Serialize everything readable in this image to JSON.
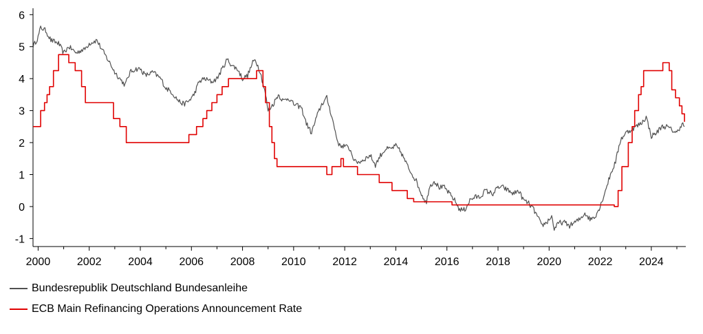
{
  "chart_data": {
    "type": "line",
    "title": "",
    "xlabel": "",
    "ylabel": "",
    "xlim": [
      1999.8,
      2025.35
    ],
    "ylim": [
      -1.25,
      6.2
    ],
    "y_ticks": [
      -1,
      0,
      1,
      2,
      3,
      4,
      5,
      6
    ],
    "x_ticks": [
      2000,
      2002,
      2004,
      2006,
      2008,
      2010,
      2012,
      2014,
      2016,
      2018,
      2020,
      2022,
      2024
    ],
    "grid": false,
    "legend_position": "bottom-left",
    "series": [
      {
        "name": "Bundesrepublik Deutschland Bundesanleihe",
        "color": "#505050",
        "style": "noisy-line",
        "x": [
          1999.8,
          2000.0,
          2000.1,
          2000.3,
          2000.5,
          2000.8,
          2001.0,
          2001.2,
          2001.5,
          2001.7,
          2001.8,
          2002.0,
          2002.3,
          2002.5,
          2002.8,
          2003.0,
          2003.2,
          2003.4,
          2003.6,
          2003.8,
          2004.0,
          2004.2,
          2004.5,
          2004.8,
          2005.0,
          2005.2,
          2005.5,
          2005.7,
          2005.9,
          2006.1,
          2006.3,
          2006.5,
          2006.8,
          2007.0,
          2007.2,
          2007.4,
          2007.6,
          2007.8,
          2008.0,
          2008.2,
          2008.4,
          2008.5,
          2008.7,
          2008.9,
          2009.0,
          2009.2,
          2009.4,
          2009.6,
          2009.8,
          2010.0,
          2010.3,
          2010.5,
          2010.7,
          2010.9,
          2011.1,
          2011.3,
          2011.5,
          2011.7,
          2011.8,
          2012.0,
          2012.2,
          2012.4,
          2012.6,
          2012.8,
          2013.0,
          2013.2,
          2013.4,
          2013.6,
          2013.8,
          2014.0,
          2014.2,
          2014.5,
          2014.8,
          2015.0,
          2015.2,
          2015.3,
          2015.5,
          2015.7,
          2015.9,
          2016.1,
          2016.3,
          2016.5,
          2016.7,
          2016.9,
          2017.1,
          2017.3,
          2017.5,
          2017.8,
          2018.0,
          2018.2,
          2018.4,
          2018.6,
          2018.8,
          2019.0,
          2019.2,
          2019.4,
          2019.6,
          2019.7,
          2019.9,
          2020.1,
          2020.2,
          2020.4,
          2020.6,
          2020.8,
          2021.0,
          2021.2,
          2021.4,
          2021.6,
          2021.8,
          2022.0,
          2022.2,
          2022.4,
          2022.6,
          2022.8,
          2023.0,
          2023.2,
          2023.4,
          2023.6,
          2023.8,
          2024.0,
          2024.2,
          2024.4,
          2024.6,
          2024.8,
          2025.0,
          2025.2,
          2025.3
        ],
        "y": [
          5.0,
          5.3,
          5.6,
          5.5,
          5.2,
          5.1,
          4.8,
          5.0,
          4.8,
          4.9,
          4.9,
          5.1,
          5.2,
          4.9,
          4.5,
          4.2,
          4.0,
          3.8,
          4.2,
          4.3,
          4.3,
          4.1,
          4.2,
          4.0,
          3.7,
          3.6,
          3.3,
          3.2,
          3.3,
          3.5,
          3.9,
          4.0,
          3.9,
          4.0,
          4.3,
          4.6,
          4.4,
          4.3,
          4.0,
          4.1,
          4.5,
          4.6,
          4.2,
          3.5,
          3.0,
          3.2,
          3.5,
          3.3,
          3.4,
          3.2,
          3.1,
          2.6,
          2.3,
          2.8,
          3.2,
          3.4,
          2.8,
          2.1,
          1.9,
          1.9,
          1.8,
          1.4,
          1.4,
          1.5,
          1.6,
          1.3,
          1.6,
          1.8,
          1.8,
          1.9,
          1.7,
          1.2,
          0.8,
          0.4,
          0.1,
          0.6,
          0.8,
          0.6,
          0.6,
          0.4,
          0.2,
          -0.1,
          -0.1,
          0.2,
          0.3,
          0.3,
          0.5,
          0.4,
          0.6,
          0.6,
          0.5,
          0.4,
          0.5,
          0.2,
          0.1,
          -0.1,
          -0.4,
          -0.6,
          -0.5,
          -0.3,
          -0.7,
          -0.5,
          -0.5,
          -0.6,
          -0.5,
          -0.4,
          -0.2,
          -0.4,
          -0.3,
          0.0,
          0.5,
          1.0,
          1.4,
          2.1,
          2.3,
          2.4,
          2.5,
          2.6,
          2.8,
          2.2,
          2.3,
          2.5,
          2.5,
          2.4,
          2.3,
          2.6,
          2.5
        ]
      },
      {
        "name": "ECB Main Refinancing Operations Announcement Rate",
        "color": "#e00000",
        "style": "step",
        "x": [
          1999.8,
          1999.9,
          2000.1,
          2000.25,
          2000.35,
          2000.45,
          2000.6,
          2000.8,
          2001.2,
          2001.45,
          2001.7,
          2001.85,
          2002.95,
          2003.2,
          2003.45,
          2005.9,
          2006.2,
          2006.45,
          2006.6,
          2006.8,
          2007.0,
          2007.2,
          2007.45,
          2008.55,
          2008.8,
          2008.9,
          2009.05,
          2009.15,
          2009.25,
          2009.35,
          2011.3,
          2011.5,
          2011.85,
          2011.95,
          2012.5,
          2013.35,
          2013.85,
          2014.45,
          2014.7,
          2016.2,
          2022.55,
          2022.7,
          2022.85,
          2023.1,
          2023.25,
          2023.35,
          2023.5,
          2023.6,
          2023.7,
          2024.45,
          2024.7,
          2024.8,
          2024.95,
          2025.1,
          2025.2,
          2025.3
        ],
        "y": [
          2.5,
          2.5,
          3.0,
          3.25,
          3.5,
          3.75,
          4.25,
          4.75,
          4.5,
          4.25,
          3.75,
          3.25,
          2.75,
          2.5,
          2.0,
          2.25,
          2.5,
          2.75,
          3.0,
          3.25,
          3.5,
          3.75,
          4.0,
          4.25,
          3.75,
          3.25,
          2.5,
          2.0,
          1.5,
          1.25,
          1.0,
          1.25,
          1.5,
          1.25,
          1.0,
          0.75,
          0.5,
          0.25,
          0.15,
          0.05,
          0.0,
          0.5,
          1.25,
          2.0,
          2.5,
          3.0,
          3.5,
          3.75,
          4.25,
          4.5,
          4.25,
          3.65,
          3.4,
          3.15,
          2.9,
          2.65
        ]
      }
    ]
  },
  "legend": {
    "item1": "Bundesrepublik Deutschland Bundesanleihe",
    "item2": "ECB Main Refinancing Operations Announcement Rate"
  }
}
